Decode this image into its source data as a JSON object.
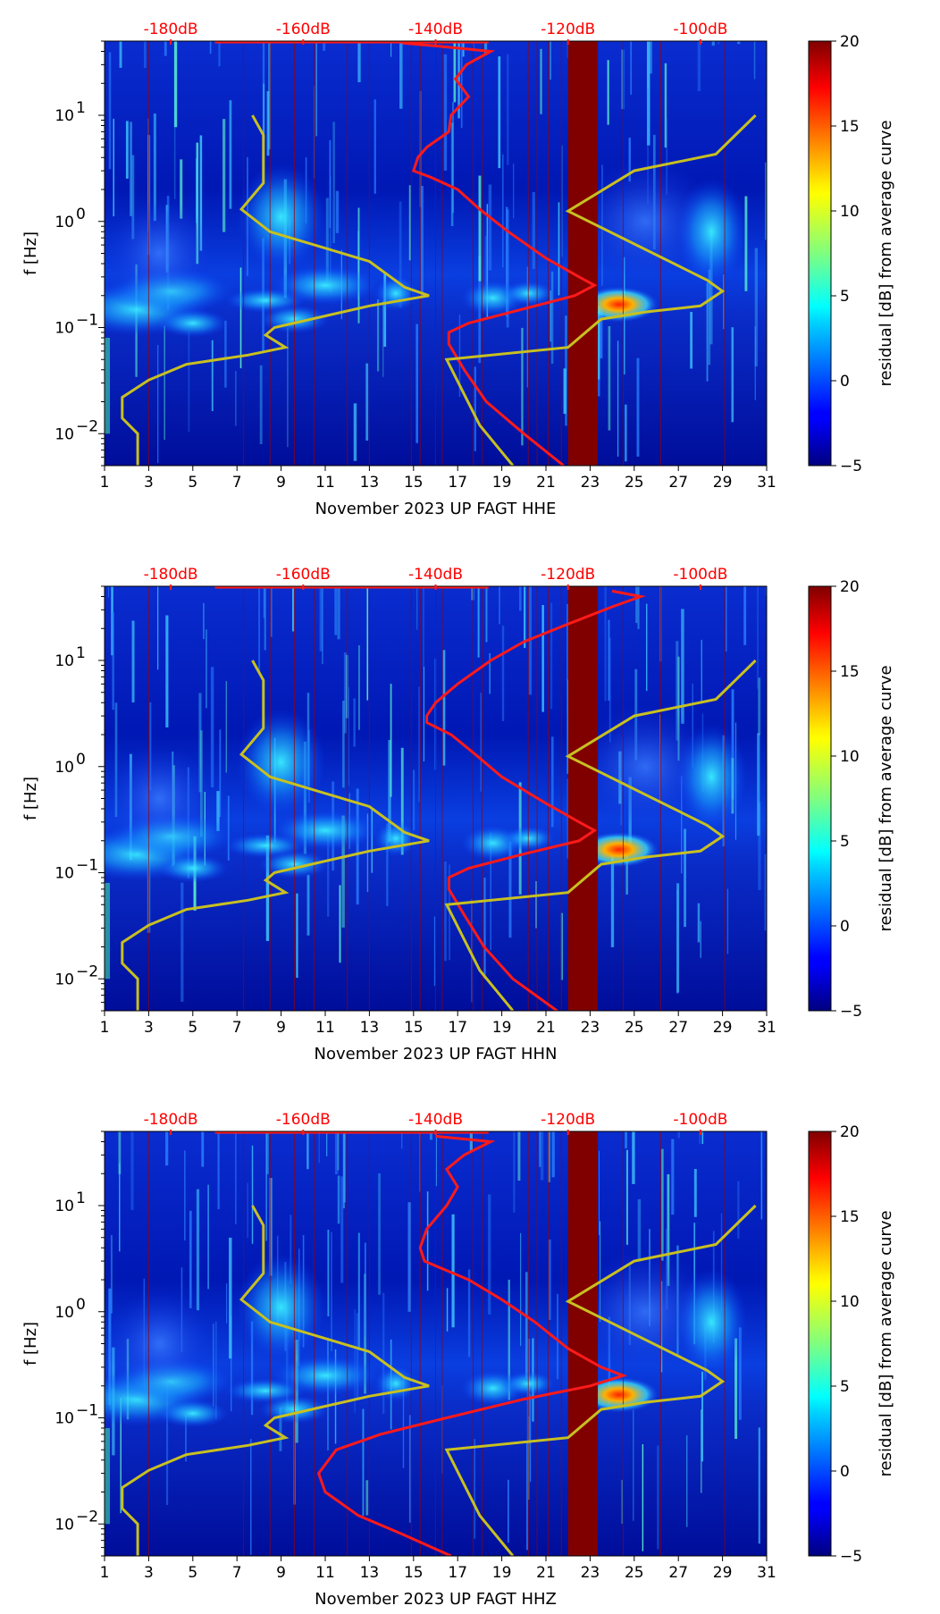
{
  "chart_data": [
    {
      "type": "heatmap",
      "xlabel": "November 2023 UP FAGT  HHE",
      "ylabel": "f [Hz]",
      "x_ticks": [
        "1",
        "3",
        "5",
        "7",
        "9",
        "11",
        "13",
        "15",
        "17",
        "19",
        "21",
        "23",
        "25",
        "27",
        "29",
        "31"
      ],
      "xlim": [
        1,
        31
      ],
      "ylim": [
        0.005,
        50
      ],
      "yscale": "log",
      "y_ticks": [
        {
          "value": 0.01,
          "base": "10",
          "exp": "−2"
        },
        {
          "value": 0.1,
          "base": "10",
          "exp": "−1"
        },
        {
          "value": 1,
          "base": "10",
          "exp": "0"
        },
        {
          "value": 10,
          "base": "10",
          "exp": "1"
        }
      ],
      "top_labels": [
        "-180dB",
        "-160dB",
        "-140dB",
        "-120dB",
        "-100dB"
      ],
      "top_label_days": [
        4,
        10,
        16,
        22,
        28
      ],
      "colorbar": {
        "label": "residual [dB] from average curve",
        "min": -5,
        "max": 20,
        "ticks": [
          "−5",
          "0",
          "5",
          "10",
          "15",
          "20"
        ]
      },
      "saturated_band_days": [
        22,
        23.35
      ],
      "red_curve": [
        [
          21.8,
          0.005
        ],
        [
          20,
          0.01
        ],
        [
          18.3,
          0.02
        ],
        [
          17.3,
          0.04
        ],
        [
          16.6,
          0.07
        ],
        [
          16.6,
          0.09
        ],
        [
          17.5,
          0.11
        ],
        [
          20,
          0.15
        ],
        [
          22.3,
          0.2
        ],
        [
          23.2,
          0.25
        ],
        [
          22.5,
          0.3
        ],
        [
          21,
          0.45
        ],
        [
          19.3,
          0.8
        ],
        [
          18,
          1.3
        ],
        [
          17,
          2
        ],
        [
          15.8,
          2.6
        ],
        [
          15,
          3
        ],
        [
          15.2,
          4
        ],
        [
          15.6,
          5
        ],
        [
          16.6,
          7
        ],
        [
          16.7,
          10
        ],
        [
          17.5,
          15
        ],
        [
          16.9,
          22
        ],
        [
          17.4,
          30
        ],
        [
          18.5,
          40
        ],
        [
          16,
          45
        ],
        [
          14.5,
          48
        ]
      ],
      "yellow_curve": [
        [
          2.5,
          0.005
        ],
        [
          2.5,
          0.01
        ],
        [
          1.8,
          0.014
        ],
        [
          1.8,
          0.022
        ],
        [
          3,
          0.032
        ],
        [
          4.7,
          0.045
        ],
        [
          7.5,
          0.055
        ],
        [
          9.2,
          0.065
        ],
        [
          8.3,
          0.085
        ],
        [
          8.7,
          0.1
        ],
        [
          13,
          0.16
        ],
        [
          15.7,
          0.2
        ],
        [
          14.6,
          0.24
        ],
        [
          13,
          0.42
        ],
        [
          8.5,
          0.8
        ],
        [
          7.2,
          1.3
        ],
        [
          8.2,
          2.3
        ],
        [
          8.2,
          6.5
        ],
        [
          7.7,
          10
        ]
      ],
      "olive_curve": [
        [
          19.5,
          0.005
        ],
        [
          18,
          0.012
        ],
        [
          16.5,
          0.05
        ],
        [
          22,
          0.065
        ],
        [
          23.5,
          0.12
        ],
        [
          25.5,
          0.14
        ],
        [
          28,
          0.16
        ],
        [
          29,
          0.22
        ],
        [
          28.3,
          0.28
        ],
        [
          22,
          1.25
        ],
        [
          25,
          3
        ],
        [
          28.7,
          4.3
        ],
        [
          30.5,
          10
        ]
      ]
    },
    {
      "type": "heatmap",
      "xlabel": "November 2023 UP FAGT  HHN",
      "ylabel": "f [Hz]",
      "x_ticks": [
        "1",
        "3",
        "5",
        "7",
        "9",
        "11",
        "13",
        "15",
        "17",
        "19",
        "21",
        "23",
        "25",
        "27",
        "29",
        "31"
      ],
      "xlim": [
        1,
        31
      ],
      "ylim": [
        0.005,
        50
      ],
      "yscale": "log",
      "y_ticks": [
        {
          "value": 0.01,
          "base": "10",
          "exp": "−2"
        },
        {
          "value": 0.1,
          "base": "10",
          "exp": "−1"
        },
        {
          "value": 1,
          "base": "10",
          "exp": "0"
        },
        {
          "value": 10,
          "base": "10",
          "exp": "1"
        }
      ],
      "top_labels": [
        "-180dB",
        "-160dB",
        "-140dB",
        "-120dB",
        "-100dB"
      ],
      "top_label_days": [
        4,
        10,
        16,
        22,
        28
      ],
      "colorbar": {
        "label": "residual [dB] from average curve",
        "min": -5,
        "max": 20,
        "ticks": [
          "−5",
          "0",
          "5",
          "10",
          "15",
          "20"
        ]
      },
      "saturated_band_days": [
        22,
        23.35
      ],
      "red_curve": [
        [
          21.5,
          0.005
        ],
        [
          19.5,
          0.01
        ],
        [
          18.2,
          0.02
        ],
        [
          17.3,
          0.04
        ],
        [
          16.6,
          0.07
        ],
        [
          16.6,
          0.09
        ],
        [
          17.5,
          0.11
        ],
        [
          20,
          0.15
        ],
        [
          22.5,
          0.2
        ],
        [
          23.2,
          0.25
        ],
        [
          22.5,
          0.3
        ],
        [
          21,
          0.45
        ],
        [
          19,
          0.8
        ],
        [
          17.8,
          1.3
        ],
        [
          16.7,
          2
        ],
        [
          15.6,
          2.6
        ],
        [
          15.6,
          3
        ],
        [
          16,
          4
        ],
        [
          17,
          6
        ],
        [
          18.5,
          10
        ],
        [
          20,
          15
        ],
        [
          22,
          22
        ],
        [
          24,
          32
        ],
        [
          25.3,
          40
        ],
        [
          24,
          45
        ]
      ],
      "yellow_curve": [
        [
          2.5,
          0.005
        ],
        [
          2.5,
          0.01
        ],
        [
          1.8,
          0.014
        ],
        [
          1.8,
          0.022
        ],
        [
          3,
          0.032
        ],
        [
          4.7,
          0.045
        ],
        [
          7.5,
          0.055
        ],
        [
          9.2,
          0.065
        ],
        [
          8.3,
          0.085
        ],
        [
          8.7,
          0.1
        ],
        [
          13,
          0.16
        ],
        [
          15.7,
          0.2
        ],
        [
          14.6,
          0.24
        ],
        [
          13,
          0.42
        ],
        [
          8.5,
          0.8
        ],
        [
          7.2,
          1.3
        ],
        [
          8.2,
          2.3
        ],
        [
          8.2,
          6.5
        ],
        [
          7.7,
          10
        ]
      ],
      "olive_curve": [
        [
          19.5,
          0.005
        ],
        [
          18,
          0.012
        ],
        [
          16.5,
          0.05
        ],
        [
          22,
          0.065
        ],
        [
          23.5,
          0.12
        ],
        [
          25.5,
          0.14
        ],
        [
          28,
          0.16
        ],
        [
          29,
          0.22
        ],
        [
          28.3,
          0.28
        ],
        [
          22,
          1.25
        ],
        [
          25,
          3
        ],
        [
          28.7,
          4.3
        ],
        [
          30.5,
          10
        ]
      ]
    },
    {
      "type": "heatmap",
      "xlabel": "November 2023 UP FAGT  HHZ",
      "ylabel": "f [Hz]",
      "x_ticks": [
        "1",
        "3",
        "5",
        "7",
        "9",
        "11",
        "13",
        "15",
        "17",
        "19",
        "21",
        "23",
        "25",
        "27",
        "29",
        "31"
      ],
      "xlim": [
        1,
        31
      ],
      "ylim": [
        0.005,
        50
      ],
      "yscale": "log",
      "y_ticks": [
        {
          "value": 0.01,
          "base": "10",
          "exp": "−2"
        },
        {
          "value": 0.1,
          "base": "10",
          "exp": "−1"
        },
        {
          "value": 1,
          "base": "10",
          "exp": "0"
        },
        {
          "value": 10,
          "base": "10",
          "exp": "1"
        }
      ],
      "top_labels": [
        "-180dB",
        "-160dB",
        "-140dB",
        "-120dB",
        "-100dB"
      ],
      "top_label_days": [
        4,
        10,
        16,
        22,
        28
      ],
      "colorbar": {
        "label": "residual [dB] from average curve",
        "min": -5,
        "max": 20,
        "ticks": [
          "−5",
          "0",
          "5",
          "10",
          "15",
          "20"
        ]
      },
      "saturated_band_days": [
        22,
        23.35
      ],
      "red_curve": [
        [
          16.7,
          0.005
        ],
        [
          14.5,
          0.008
        ],
        [
          12.5,
          0.012
        ],
        [
          11,
          0.02
        ],
        [
          10.7,
          0.03
        ],
        [
          11.5,
          0.05
        ],
        [
          13.5,
          0.07
        ],
        [
          16.5,
          0.1
        ],
        [
          20,
          0.15
        ],
        [
          23,
          0.2
        ],
        [
          24.5,
          0.25
        ],
        [
          23.5,
          0.3
        ],
        [
          22,
          0.45
        ],
        [
          20.5,
          0.8
        ],
        [
          19,
          1.3
        ],
        [
          17.5,
          2
        ],
        [
          16.2,
          2.6
        ],
        [
          15.5,
          3
        ],
        [
          15.3,
          4
        ],
        [
          15.6,
          6
        ],
        [
          16.5,
          10
        ],
        [
          17,
          15
        ],
        [
          16.5,
          22
        ],
        [
          17.3,
          30
        ],
        [
          18.5,
          40
        ],
        [
          16,
          45
        ]
      ],
      "yellow_curve": [
        [
          2.5,
          0.005
        ],
        [
          2.5,
          0.01
        ],
        [
          1.8,
          0.014
        ],
        [
          1.8,
          0.022
        ],
        [
          3,
          0.032
        ],
        [
          4.7,
          0.045
        ],
        [
          7.5,
          0.055
        ],
        [
          9.2,
          0.065
        ],
        [
          8.3,
          0.085
        ],
        [
          8.7,
          0.1
        ],
        [
          13,
          0.16
        ],
        [
          15.7,
          0.2
        ],
        [
          14.6,
          0.24
        ],
        [
          13,
          0.42
        ],
        [
          8.5,
          0.8
        ],
        [
          7.2,
          1.3
        ],
        [
          8.2,
          2.3
        ],
        [
          8.2,
          6.5
        ],
        [
          7.7,
          10
        ]
      ],
      "olive_curve": [
        [
          19.5,
          0.005
        ],
        [
          18,
          0.012
        ],
        [
          16.5,
          0.05
        ],
        [
          22,
          0.065
        ],
        [
          23.5,
          0.12
        ],
        [
          25.5,
          0.14
        ],
        [
          28,
          0.16
        ],
        [
          29,
          0.22
        ],
        [
          28.3,
          0.28
        ],
        [
          22,
          1.25
        ],
        [
          25,
          3
        ],
        [
          28.7,
          4.3
        ],
        [
          30.5,
          10
        ]
      ]
    }
  ]
}
